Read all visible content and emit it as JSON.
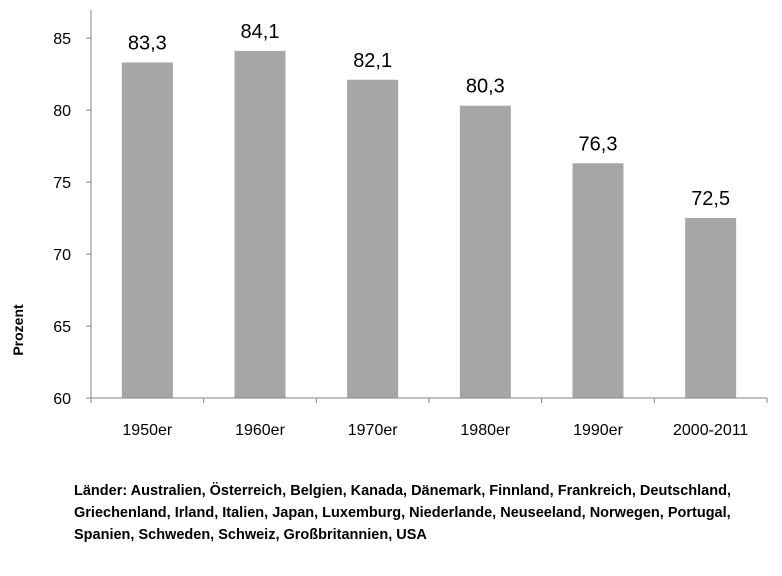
{
  "chart_data": {
    "type": "bar",
    "categories": [
      "1950er",
      "1960er",
      "1970er",
      "1980er",
      "1990er",
      "2000-2011"
    ],
    "values": [
      83.3,
      84.1,
      82.1,
      80.3,
      76.3,
      72.5
    ],
    "value_labels": [
      "83,3",
      "84,1",
      "82,1",
      "80,3",
      "76,3",
      "72,5"
    ],
    "ylabel": "Prozent",
    "ylim": [
      60,
      85
    ],
    "yticks": [
      60,
      65,
      70,
      75,
      80,
      85
    ],
    "grid": false,
    "legend": "none",
    "bar_color": "#a6a6a6"
  },
  "footnote": "Länder: Australien, Österreich, Belgien, Kanada, Dänemark, Finnland, Frankreich, Deutschland, Griechenland, Irland, Italien, Japan, Luxemburg, Niederlande, Neuseeland, Norwegen, Portugal, Spanien, Schweden, Schweiz, Großbritannien, USA"
}
